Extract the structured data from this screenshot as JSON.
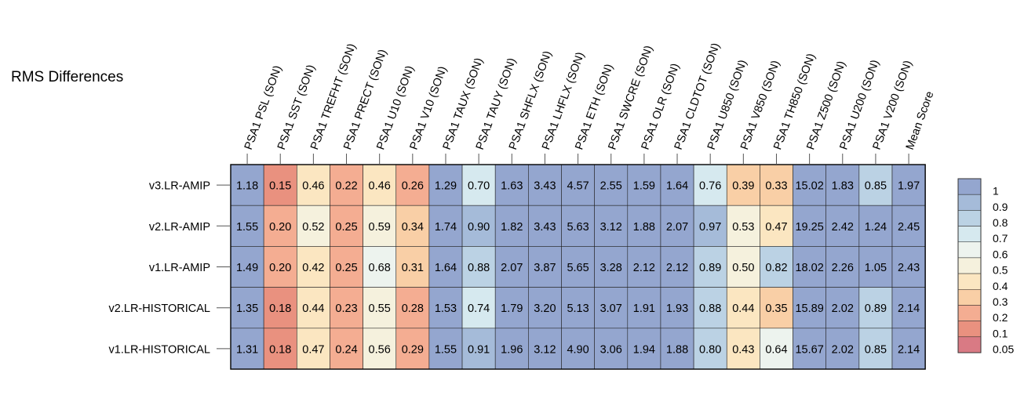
{
  "title": "RMS Differences",
  "chart_data": {
    "type": "heatmap",
    "columns": [
      "PSA1 PSL (SON)",
      "PSA1 SST (SON)",
      "PSA1 TREFHT (SON)",
      "PSA1 PRECT (SON)",
      "PSA1 U10 (SON)",
      "PSA1 V10 (SON)",
      "PSA1 TAUX (SON)",
      "PSA1 TAUY (SON)",
      "PSA1 SHFLX (SON)",
      "PSA1 LHFLX (SON)",
      "PSA1 ETH (SON)",
      "PSA1 SWCRE (SON)",
      "PSA1 OLR (SON)",
      "PSA1 CLDTOT (SON)",
      "PSA1 U850 (SON)",
      "PSA1 V850 (SON)",
      "PSA1 TH850 (SON)",
      "PSA1 Z500 (SON)",
      "PSA1 U200 (SON)",
      "PSA1 V200 (SON)",
      "Mean Score"
    ],
    "rows": [
      "v3.LR-AMIP",
      "v2.LR-AMIP",
      "v1.LR-AMIP",
      "v2.LR-HISTORICAL",
      "v1.LR-HISTORICAL"
    ],
    "values": [
      [
        "1.18",
        "0.15",
        "0.46",
        "0.22",
        "0.46",
        "0.26",
        "1.29",
        "0.70",
        "1.63",
        "3.43",
        "4.57",
        "2.55",
        "1.59",
        "1.64",
        "0.76",
        "0.39",
        "0.33",
        "15.02",
        "1.83",
        "0.85",
        "1.97"
      ],
      [
        "1.55",
        "0.20",
        "0.52",
        "0.25",
        "0.59",
        "0.34",
        "1.74",
        "0.90",
        "1.82",
        "3.43",
        "5.63",
        "3.12",
        "1.88",
        "2.07",
        "0.97",
        "0.53",
        "0.47",
        "19.25",
        "2.42",
        "1.24",
        "2.45"
      ],
      [
        "1.49",
        "0.20",
        "0.42",
        "0.25",
        "0.68",
        "0.31",
        "1.64",
        "0.88",
        "2.07",
        "3.87",
        "5.65",
        "3.28",
        "2.12",
        "2.12",
        "0.89",
        "0.50",
        "0.82",
        "18.02",
        "2.26",
        "1.05",
        "2.43"
      ],
      [
        "1.35",
        "0.18",
        "0.44",
        "0.23",
        "0.55",
        "0.28",
        "1.53",
        "0.74",
        "1.79",
        "3.20",
        "5.13",
        "3.07",
        "1.91",
        "1.93",
        "0.88",
        "0.44",
        "0.35",
        "15.89",
        "2.02",
        "0.89",
        "2.14"
      ],
      [
        "1.31",
        "0.18",
        "0.47",
        "0.24",
        "0.56",
        "0.29",
        "1.55",
        "0.91",
        "1.96",
        "3.12",
        "4.90",
        "3.06",
        "1.94",
        "1.88",
        "0.80",
        "0.43",
        "0.64",
        "15.67",
        "2.02",
        "0.85",
        "2.14"
      ]
    ],
    "colorbar": {
      "labels": [
        "1",
        "0.9",
        "0.8",
        "0.7",
        "0.6",
        "0.5",
        "0.4",
        "0.3",
        "0.2",
        "0.1",
        "0.05"
      ],
      "colors": [
        "#94a6cf",
        "#a5bbd9",
        "#bbd2e4",
        "#d6e9ef",
        "#edf3ee",
        "#f5f1dd",
        "#fbe6c1",
        "#f9cfa6",
        "#f4ad92",
        "#e9917f",
        "#d97a84"
      ]
    }
  }
}
